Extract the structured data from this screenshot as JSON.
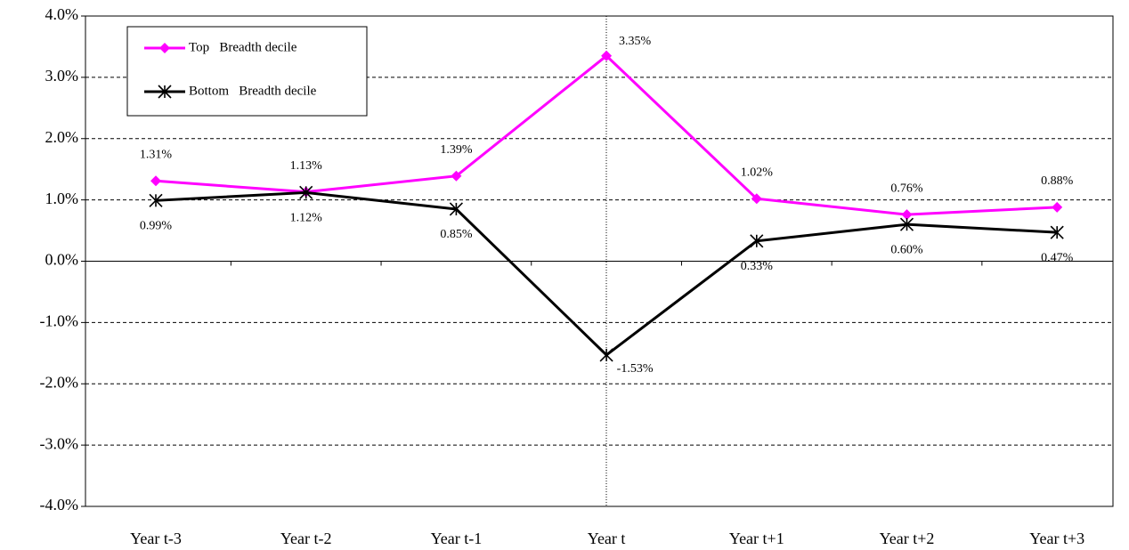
{
  "chart_data": {
    "type": "line",
    "categories": [
      "Year t-3",
      "Year t-2",
      "Year t-1",
      "Year t",
      "Year t+1",
      "Year t+2",
      "Year t+3"
    ],
    "series": [
      {
        "name": "Top   Breadth decile",
        "color": "#ff00ff",
        "marker": "diamond",
        "values": [
          1.31,
          1.13,
          1.39,
          3.35,
          1.02,
          0.76,
          0.88
        ],
        "value_labels": [
          "1.31%",
          "1.13%",
          "1.39%",
          "3.35%",
          "1.02%",
          "0.76%",
          "0.88%"
        ]
      },
      {
        "name": "Bottom   Breadth decile",
        "color": "#000000",
        "marker": "asterisk",
        "values": [
          0.99,
          1.12,
          0.85,
          -1.53,
          0.33,
          0.6,
          0.47
        ],
        "value_labels": [
          "0.99%",
          "1.12%",
          "0.85%",
          "-1.53%",
          "0.33%",
          "0.60%",
          "0.47%"
        ]
      }
    ],
    "ylim": [
      -4,
      4
    ],
    "yticks": [
      {
        "value": -4,
        "label": "-4.0%"
      },
      {
        "value": -3,
        "label": "-3.0%"
      },
      {
        "value": -2,
        "label": "-2.0%"
      },
      {
        "value": -1,
        "label": "-1.0%"
      },
      {
        "value": 0,
        "label": "0.0%"
      },
      {
        "value": 1,
        "label": "1.0%"
      },
      {
        "value": 2,
        "label": "2.0%"
      },
      {
        "value": 3,
        "label": "3.0%"
      },
      {
        "value": 4,
        "label": "4.0%"
      }
    ],
    "grid": true,
    "legend": "top-left"
  }
}
